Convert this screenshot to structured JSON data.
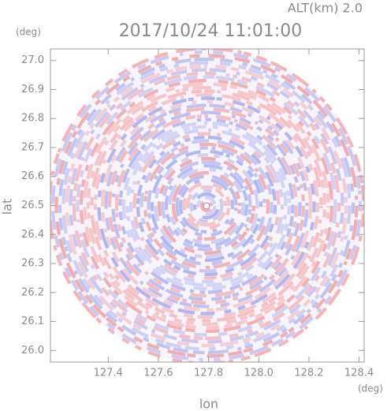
{
  "chart_data": {
    "type": "radar-ppi",
    "title": "2017/10/24 11:01:00",
    "subtitle": "ALT(km) 2.0",
    "x_label": "lon",
    "y_label": "lat",
    "x_unit": "(deg)",
    "y_unit": "(deg)",
    "xlim": [
      127.17,
      128.42
    ],
    "ylim": [
      25.96,
      27.04
    ],
    "xticks": [
      127.4,
      127.6,
      127.8,
      {
        "value": 128.0,
        "label": "128.0"
      },
      128.2,
      128.4
    ],
    "yticks": [
      {
        "value": 26.0,
        "label": "26.0"
      },
      26.1,
      26.2,
      26.3,
      26.4,
      26.5,
      26.6,
      26.7,
      26.8,
      26.9,
      {
        "value": 27.0,
        "label": "27.0"
      }
    ],
    "colors": [
      "#f4a6a6",
      "#a9b0f0"
    ]
  }
}
